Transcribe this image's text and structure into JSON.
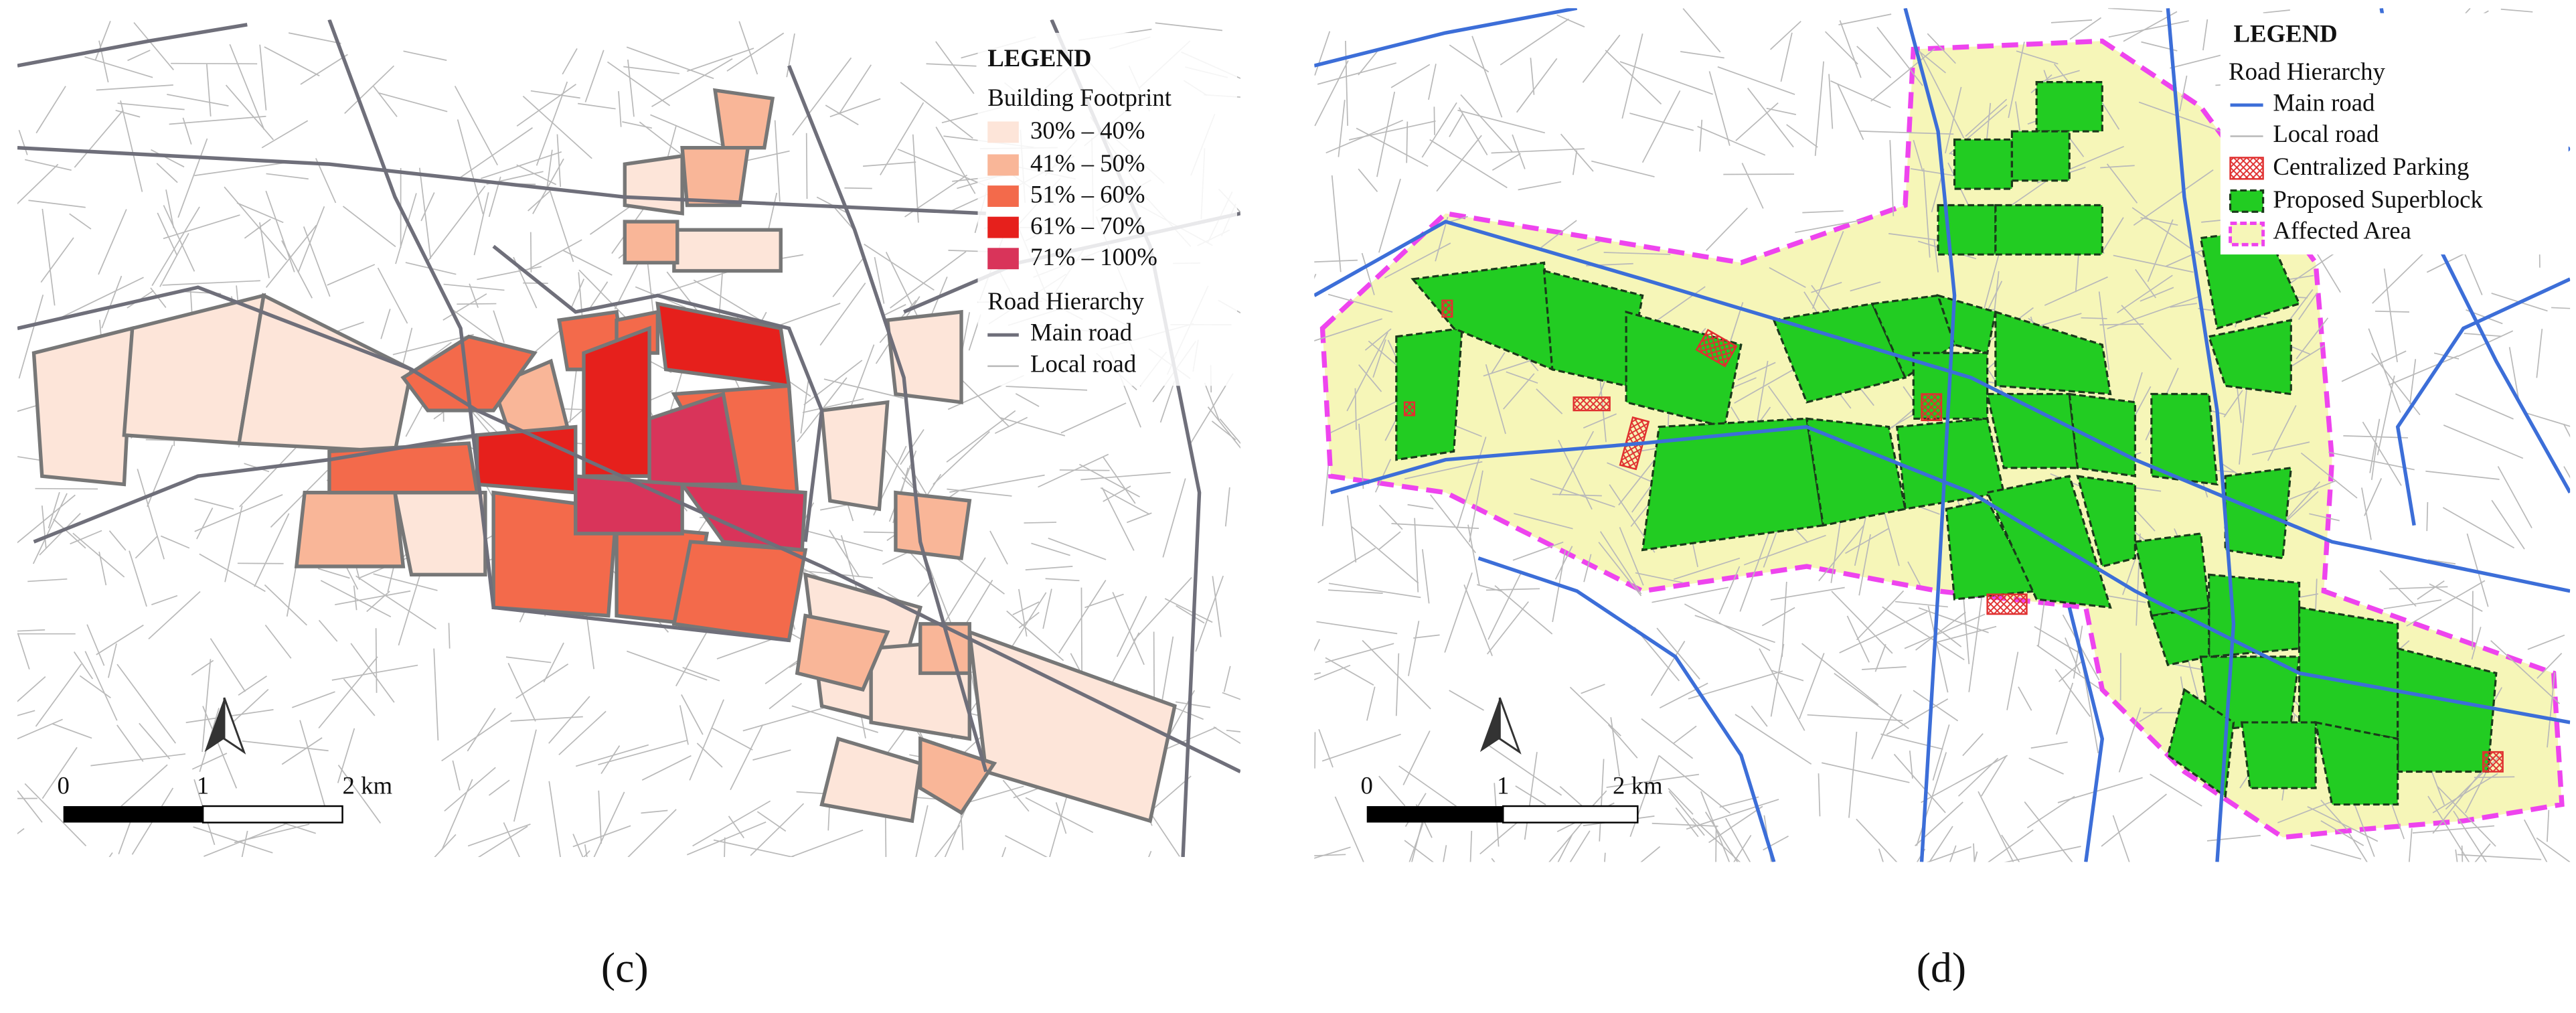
{
  "panels": [
    {
      "legend": {
        "title": "LEGEND",
        "groups": [
          {
            "heading": "Building Footprint",
            "items": [
              "30% – 40%",
              "41% – 50%",
              "51% – 60%",
              "61% – 70%",
              "71% – 100%"
            ]
          },
          {
            "heading": "Road Hierarchy",
            "items": [
              "Main road",
              "Local road"
            ]
          }
        ]
      },
      "scale_bar": [
        "0",
        "1",
        "2 km"
      ],
      "caption": "(c)"
    },
    {
      "legend": {
        "title": "LEGEND",
        "groups": [
          {
            "heading": "Road Hierarchy",
            "items": [
              "Main road",
              "Local road",
              "Centralized Parking",
              "Proposed Superblock",
              "Affected Area"
            ]
          }
        ]
      },
      "scale_bar": [
        "0",
        "1",
        "2 km"
      ],
      "caption": "(d)"
    }
  ]
}
